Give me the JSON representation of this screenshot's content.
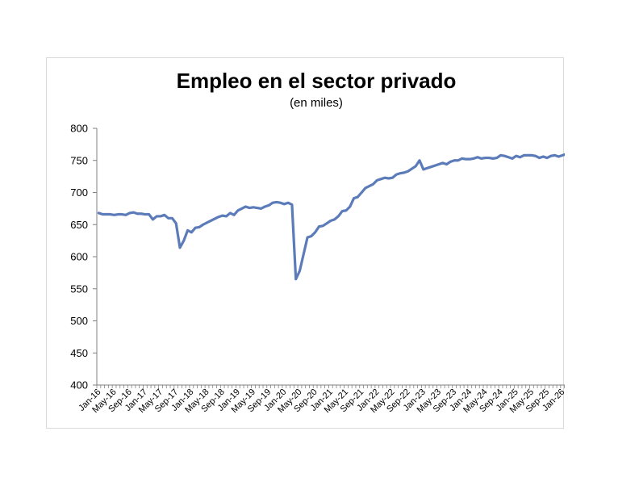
{
  "chart_data": {
    "type": "line",
    "title": "Empleo en el sector privado",
    "subtitle": "(en miles)",
    "xlabel": "",
    "ylabel": "",
    "ylim": [
      400,
      800
    ],
    "yticks": [
      400,
      450,
      500,
      550,
      600,
      650,
      700,
      750,
      800
    ],
    "x_tick_labels": [
      "Jan-16",
      "May-16",
      "Sep-16",
      "Jan-17",
      "May-17",
      "Sep-17",
      "Jan-18",
      "May-18",
      "Sep-18",
      "Jan-19",
      "May-19",
      "Sep-19",
      "Jan-20",
      "May-20",
      "Sep-20",
      "Jan-21",
      "May-21",
      "Sep-21",
      "Jan-22",
      "May-22",
      "Sep-22",
      "Jan-23",
      "May-23",
      "Sep-23",
      "Jan-24",
      "May-24",
      "Sep-24",
      "Jan-25",
      "May-25",
      "Sep-25",
      "Jan-26"
    ],
    "grid": false,
    "legend": "none",
    "line_color": "#5b7bb9",
    "series": [
      {
        "values": [
          668,
          666,
          666,
          666,
          665,
          666,
          666,
          665,
          668,
          669,
          667,
          667,
          666,
          666,
          658,
          663,
          663,
          665,
          660,
          660,
          652,
          614,
          625,
          641,
          638,
          645,
          646,
          650,
          653,
          656,
          659,
          662,
          664,
          663,
          668,
          665,
          672,
          675,
          678,
          676,
          677,
          676,
          675,
          678,
          680,
          684,
          685,
          684,
          682,
          684,
          681,
          565,
          578,
          604,
          630,
          632,
          638,
          647,
          648,
          652,
          656,
          658,
          663,
          671,
          672,
          678,
          691,
          693,
          700,
          707,
          710,
          713,
          719,
          721,
          723,
          722,
          723,
          728,
          730,
          731,
          733,
          737,
          741,
          750,
          736,
          738,
          740,
          742,
          744,
          746,
          744,
          748,
          750,
          750,
          753,
          752,
          752,
          753,
          755,
          753,
          754,
          754,
          753,
          754,
          758,
          757,
          755,
          753,
          757,
          755,
          758,
          758,
          758,
          757,
          754,
          756,
          754,
          757,
          758,
          756,
          758,
          760,
          761,
          765
        ]
      }
    ]
  }
}
